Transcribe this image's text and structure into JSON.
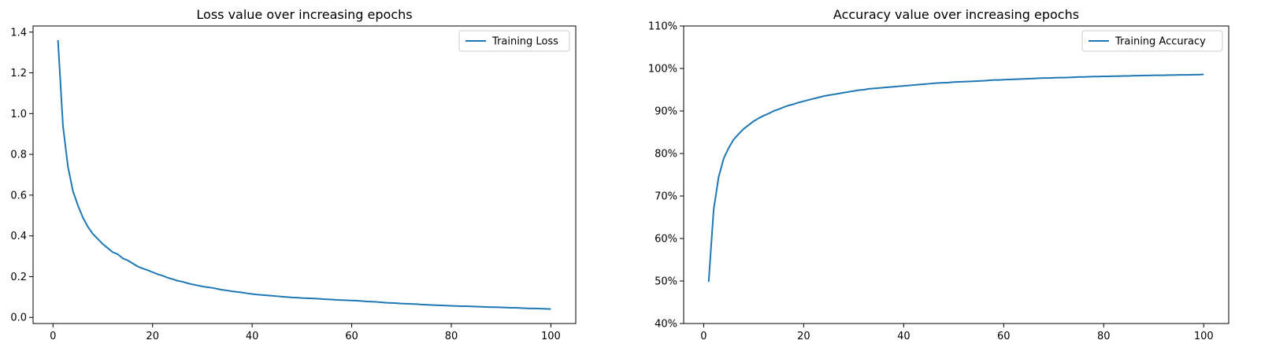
{
  "colors": {
    "line": "#1f77b4",
    "axes": "#000000",
    "legend_border": "#cccccc",
    "background": "#ffffff"
  },
  "chart_data": [
    {
      "type": "line",
      "title": "Loss value over increasing epochs",
      "xlabel": "",
      "ylabel": "",
      "xlim": [
        -4,
        105
      ],
      "ylim": [
        -0.03,
        1.43
      ],
      "xticks": [
        0,
        20,
        40,
        60,
        80,
        100
      ],
      "xtick_labels": [
        "0",
        "20",
        "40",
        "60",
        "80",
        "100"
      ],
      "yticks": [
        0.0,
        0.2,
        0.4,
        0.6,
        0.8,
        1.0,
        1.2,
        1.4
      ],
      "ytick_labels": [
        "0.0",
        "0.2",
        "0.4",
        "0.6",
        "0.8",
        "1.0",
        "1.2",
        "1.4"
      ],
      "grid": false,
      "legend": "top-right",
      "series": [
        {
          "name": "Training Loss",
          "x": [
            1,
            2,
            3,
            4,
            5,
            6,
            7,
            8,
            9,
            10,
            11,
            12,
            13,
            14,
            15,
            16,
            17,
            18,
            19,
            20,
            21,
            22,
            23,
            24,
            25,
            26,
            27,
            28,
            29,
            30,
            31,
            32,
            33,
            34,
            35,
            36,
            37,
            38,
            39,
            40,
            41,
            42,
            43,
            44,
            45,
            46,
            47,
            48,
            49,
            50,
            51,
            52,
            53,
            54,
            55,
            56,
            57,
            58,
            59,
            60,
            61,
            62,
            63,
            64,
            65,
            66,
            67,
            68,
            69,
            70,
            71,
            72,
            73,
            74,
            75,
            76,
            77,
            78,
            79,
            80,
            81,
            82,
            83,
            84,
            85,
            86,
            87,
            88,
            89,
            90,
            91,
            92,
            93,
            94,
            95,
            96,
            97,
            98,
            99,
            100
          ],
          "values": [
            1.36,
            0.94,
            0.74,
            0.62,
            0.55,
            0.49,
            0.445,
            0.41,
            0.385,
            0.36,
            0.34,
            0.32,
            0.31,
            0.29,
            0.28,
            0.265,
            0.25,
            0.24,
            0.232,
            0.222,
            0.212,
            0.205,
            0.195,
            0.188,
            0.18,
            0.175,
            0.168,
            0.162,
            0.157,
            0.152,
            0.148,
            0.145,
            0.14,
            0.135,
            0.132,
            0.128,
            0.125,
            0.122,
            0.118,
            0.115,
            0.112,
            0.11,
            0.108,
            0.106,
            0.104,
            0.102,
            0.1,
            0.098,
            0.097,
            0.095,
            0.094,
            0.093,
            0.092,
            0.09,
            0.089,
            0.088,
            0.086,
            0.085,
            0.084,
            0.083,
            0.082,
            0.08,
            0.078,
            0.077,
            0.076,
            0.074,
            0.072,
            0.071,
            0.07,
            0.068,
            0.067,
            0.066,
            0.065,
            0.063,
            0.062,
            0.061,
            0.06,
            0.059,
            0.058,
            0.057,
            0.056,
            0.055,
            0.055,
            0.054,
            0.053,
            0.052,
            0.051,
            0.05,
            0.05,
            0.049,
            0.048,
            0.047,
            0.047,
            0.046,
            0.045,
            0.044,
            0.044,
            0.043,
            0.042,
            0.041
          ]
        }
      ]
    },
    {
      "type": "line",
      "title": "Accuracy value over increasing epochs",
      "xlabel": "",
      "ylabel": "",
      "xlim": [
        -4,
        105
      ],
      "ylim": [
        40,
        110
      ],
      "xticks": [
        0,
        20,
        40,
        60,
        80,
        100
      ],
      "xtick_labels": [
        "0",
        "20",
        "40",
        "60",
        "80",
        "100"
      ],
      "yticks": [
        40,
        50,
        60,
        70,
        80,
        90,
        100,
        110
      ],
      "ytick_labels": [
        "40%",
        "50%",
        "60%",
        "70%",
        "80%",
        "90%",
        "100%",
        "110%"
      ],
      "grid": false,
      "legend": "top-right",
      "series": [
        {
          "name": "Training Accuracy",
          "x": [
            1,
            2,
            3,
            4,
            5,
            6,
            7,
            8,
            9,
            10,
            11,
            12,
            13,
            14,
            15,
            16,
            17,
            18,
            19,
            20,
            21,
            22,
            23,
            24,
            25,
            26,
            27,
            28,
            29,
            30,
            31,
            32,
            33,
            34,
            35,
            36,
            37,
            38,
            39,
            40,
            41,
            42,
            43,
            44,
            45,
            46,
            47,
            48,
            49,
            50,
            51,
            52,
            53,
            54,
            55,
            56,
            57,
            58,
            59,
            60,
            61,
            62,
            63,
            64,
            65,
            66,
            67,
            68,
            69,
            70,
            71,
            72,
            73,
            74,
            75,
            76,
            77,
            78,
            79,
            80,
            81,
            82,
            83,
            84,
            85,
            86,
            87,
            88,
            89,
            90,
            91,
            92,
            93,
            94,
            95,
            96,
            97,
            98,
            99,
            100
          ],
          "values": [
            49.8,
            66.8,
            74.5,
            78.8,
            81.3,
            83.3,
            84.6,
            85.8,
            86.7,
            87.6,
            88.3,
            88.9,
            89.4,
            90.0,
            90.4,
            90.9,
            91.3,
            91.6,
            92.0,
            92.3,
            92.6,
            92.9,
            93.2,
            93.5,
            93.7,
            93.9,
            94.1,
            94.3,
            94.5,
            94.7,
            94.9,
            95.0,
            95.2,
            95.3,
            95.4,
            95.5,
            95.6,
            95.7,
            95.8,
            95.9,
            96.0,
            96.1,
            96.2,
            96.3,
            96.4,
            96.5,
            96.6,
            96.65,
            96.7,
            96.8,
            96.85,
            96.9,
            96.95,
            97.0,
            97.05,
            97.1,
            97.2,
            97.3,
            97.3,
            97.35,
            97.4,
            97.45,
            97.5,
            97.55,
            97.6,
            97.65,
            97.7,
            97.75,
            97.75,
            97.8,
            97.85,
            97.85,
            97.9,
            97.95,
            98.0,
            98.0,
            98.05,
            98.1,
            98.1,
            98.15,
            98.15,
            98.2,
            98.2,
            98.25,
            98.25,
            98.3,
            98.3,
            98.35,
            98.35,
            98.4,
            98.4,
            98.4,
            98.45,
            98.45,
            98.5,
            98.5,
            98.5,
            98.55,
            98.55,
            98.6
          ]
        }
      ]
    }
  ]
}
